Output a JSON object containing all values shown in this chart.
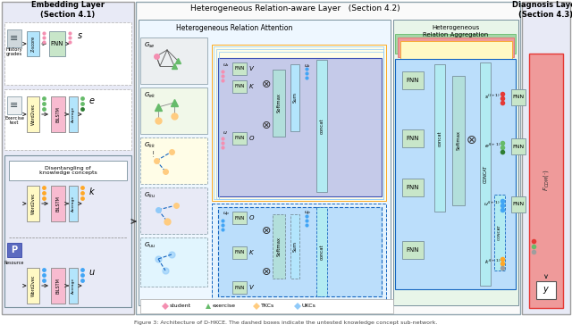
{
  "title_embed": "Embedding Layer\n(Section 4.1)",
  "title_hetero": "Heterogeneous Relation-aware Layer   (Section 4.2)",
  "title_diag": "Diagnosis Layer\n(Section 4.3)",
  "sub_attention": "Heterogeneous Relation Attention",
  "sub_aggregation": "Heterogeneous\nRelation Aggregation",
  "legend_items": [
    "student",
    "exercise",
    "TKCs",
    "UKCs"
  ],
  "legend_colors": [
    "#F48FB1",
    "#66BB6A",
    "#FFCC80",
    "#90CAF9"
  ],
  "caption": "Figure 3: Architecture of D-HKCE. The dashed boxes indicate the untested knowledge concept sub-network.",
  "bg_color": "#FFFFFF",
  "embed_panel_bg": "#E8EAF6",
  "embed_panel_ec": "#9E9E9E",
  "hetero_panel_bg": "#E3F2FD",
  "hetero_panel_ec": "#90A4AE",
  "diag_panel_bg": "#E8EAF6",
  "diag_panel_ec": "#9E9E9E",
  "graph_colors": {
    "Gse": "#ECEFF1",
    "Gek": "#F1F8E9",
    "Gkk": "#FFFDE7",
    "Gku": "#E8EAF6",
    "Guu": "#E1F5FE"
  },
  "attention_tkc_bg": "#FFFDE7",
  "attention_ukc_bg": "#E8EAF6",
  "inner_box_bg": "#C5CAE9",
  "aggreg_bg": "#BBDEFB",
  "fnn_bg": "#C8E6C9",
  "fnn_ec": "#78909C",
  "concat_bg": "#B2EBF2",
  "softmax_bg": "#B2DFDB",
  "diag_red_bg": "#EF9A9A",
  "pink_dot": "#F48FB1",
  "green_dot": "#66BB6A",
  "dark_green_dot": "#2E7D32",
  "blue_dot": "#42A5F5",
  "orange_dot": "#FFA726",
  "gray_dot": "#9E9E9E",
  "red_dot": "#E53935"
}
